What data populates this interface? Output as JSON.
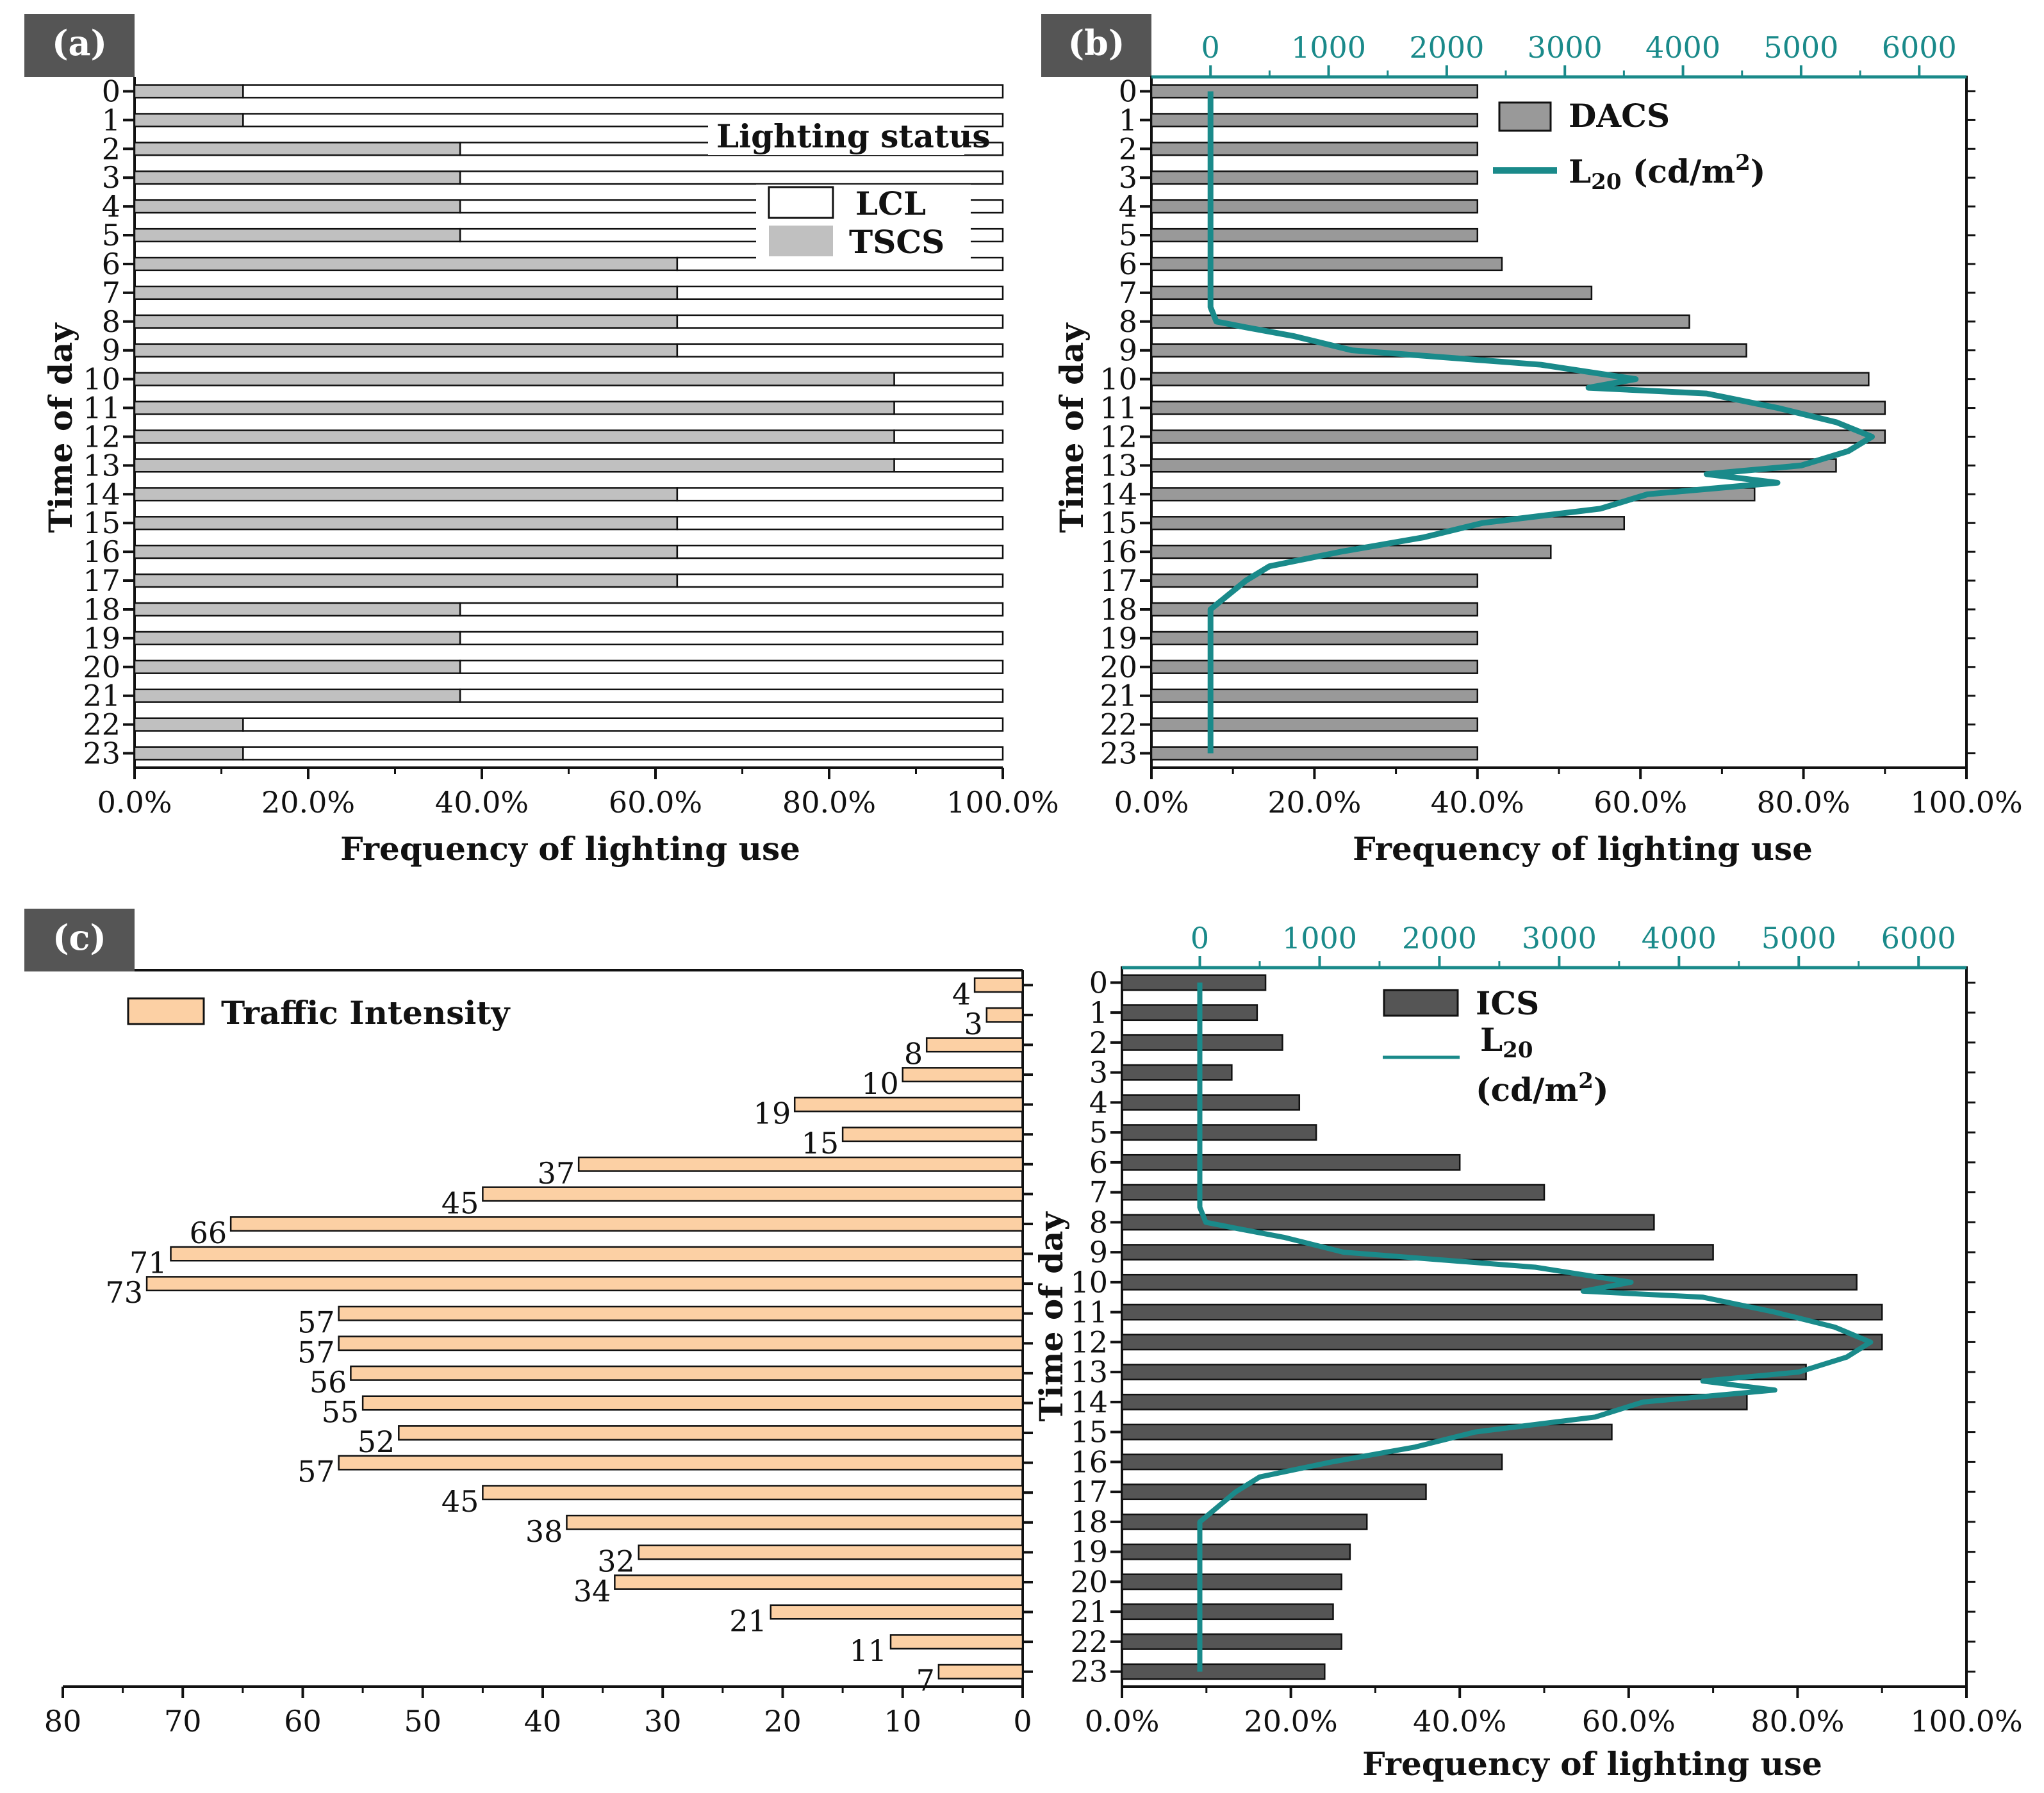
{
  "panels": {
    "a": {
      "label": "(a)"
    },
    "b": {
      "label": "(b)"
    },
    "c": {
      "label": "(c)"
    }
  },
  "colors": {
    "tscs": "#c0c0c0",
    "dacs": "#999999",
    "ics": "#555555",
    "traffic": "#fcd0a4",
    "luminance": "#1a8a8a",
    "panel_label_bg": "#555555"
  },
  "chart_data": [
    {
      "id": "a",
      "type": "bar",
      "orientation": "horizontal",
      "stacked": true,
      "ylabel": "Time of day",
      "xlabel": "Frequency of lighting use",
      "categories": [
        "0",
        "1",
        "2",
        "3",
        "4",
        "5",
        "6",
        "7",
        "8",
        "9",
        "10",
        "11",
        "12",
        "13",
        "14",
        "15",
        "16",
        "17",
        "18",
        "19",
        "20",
        "21",
        "22",
        "23"
      ],
      "x_ticks": [
        "0.0%",
        "20.0%",
        "40.0%",
        "60.0%",
        "80.0%",
        "100.0%"
      ],
      "xlim": [
        0,
        100
      ],
      "legend_title": "Lighting status",
      "series": [
        {
          "name": "TSCS",
          "values": [
            12.5,
            12.5,
            37.5,
            37.5,
            37.5,
            37.5,
            62.5,
            62.5,
            62.5,
            62.5,
            87.5,
            87.5,
            87.5,
            87.5,
            62.5,
            62.5,
            62.5,
            62.5,
            37.5,
            37.5,
            37.5,
            37.5,
            12.5,
            12.5
          ]
        },
        {
          "name": "LCL",
          "values": [
            87.5,
            87.5,
            62.5,
            62.5,
            62.5,
            62.5,
            37.5,
            37.5,
            37.5,
            37.5,
            12.5,
            12.5,
            12.5,
            12.5,
            37.5,
            37.5,
            37.5,
            37.5,
            62.5,
            62.5,
            62.5,
            62.5,
            87.5,
            87.5
          ]
        }
      ]
    },
    {
      "id": "b",
      "type": "bar",
      "orientation": "horizontal",
      "ylabel": "Time of day",
      "xlabel": "Frequency of lighting use",
      "categories": [
        "0",
        "1",
        "2",
        "3",
        "4",
        "5",
        "6",
        "7",
        "8",
        "9",
        "10",
        "11",
        "12",
        "13",
        "14",
        "15",
        "16",
        "17",
        "18",
        "19",
        "20",
        "21",
        "22",
        "23"
      ],
      "x_ticks": [
        "0.0%",
        "20.0%",
        "40.0%",
        "60.0%",
        "80.0%",
        "100.0%"
      ],
      "xlim": [
        0,
        100
      ],
      "top_ticks": [
        "0",
        "1000",
        "2000",
        "3000",
        "4000",
        "5000",
        "6000"
      ],
      "top_xlim": [
        -500,
        6400
      ],
      "series": [
        {
          "name": "DACS",
          "values": [
            40,
            40,
            40,
            40,
            40,
            40,
            43,
            54,
            66,
            73,
            88,
            90,
            90,
            84,
            74,
            58,
            49,
            40,
            40,
            40,
            40,
            40,
            40,
            40
          ]
        }
      ],
      "line": {
        "name": "L20 (cd/m2)",
        "label_main": "L",
        "label_sub": "20",
        "label_unit": " (cd/m",
        "label_sup": "2",
        "label_close": ")",
        "hours": [
          0,
          1,
          2,
          3,
          4,
          5,
          6,
          7,
          7.5,
          8,
          8.2,
          8.5,
          9,
          9.5,
          10,
          10.3,
          10.5,
          11,
          11.5,
          12,
          12.5,
          13,
          13.3,
          13.6,
          14,
          14.5,
          15,
          15.5,
          16,
          16.5,
          17,
          17.5,
          18,
          19,
          20,
          21,
          22,
          23
        ],
        "values": [
          0,
          0,
          0,
          0,
          0,
          0,
          0,
          0,
          0,
          50,
          300,
          700,
          1200,
          2800,
          3600,
          3200,
          4200,
          4800,
          5300,
          5600,
          5400,
          5000,
          4200,
          4800,
          3700,
          3300,
          2300,
          1800,
          1100,
          500,
          300,
          150,
          0,
          0,
          0,
          0,
          0,
          0
        ]
      }
    },
    {
      "id": "c-left",
      "type": "bar",
      "orientation": "horizontal",
      "reversed_x": true,
      "categories": [
        "0",
        "1",
        "2",
        "3",
        "4",
        "5",
        "6",
        "7",
        "8",
        "9",
        "10",
        "11",
        "12",
        "13",
        "14",
        "15",
        "16",
        "17",
        "18",
        "19",
        "20",
        "21",
        "22",
        "23"
      ],
      "x_ticks": [
        "80",
        "70",
        "60",
        "50",
        "40",
        "30",
        "20",
        "10",
        "0"
      ],
      "xlim": [
        80,
        0
      ],
      "series": [
        {
          "name": "Traffic Intensity",
          "values": [
            4,
            3,
            8,
            10,
            19,
            15,
            37,
            45,
            66,
            71,
            73,
            57,
            57,
            56,
            55,
            52,
            57,
            45,
            38,
            32,
            34,
            21,
            11,
            7
          ]
        }
      ]
    },
    {
      "id": "c-right",
      "type": "bar",
      "orientation": "horizontal",
      "ylabel": "Time of day",
      "xlabel": "Frequency of lighting use",
      "categories": [
        "0",
        "1",
        "2",
        "3",
        "4",
        "5",
        "6",
        "7",
        "8",
        "9",
        "10",
        "11",
        "12",
        "13",
        "14",
        "15",
        "16",
        "17",
        "18",
        "19",
        "20",
        "21",
        "22",
        "23"
      ],
      "x_ticks": [
        "0.0%",
        "20.0%",
        "40.0%",
        "60.0%",
        "80.0%",
        "100.0%"
      ],
      "xlim": [
        0,
        100
      ],
      "top_ticks": [
        "0",
        "1000",
        "2000",
        "3000",
        "4000",
        "5000",
        "6000"
      ],
      "top_xlim": [
        -650,
        6400
      ],
      "series": [
        {
          "name": "ICS",
          "values": [
            17,
            16,
            19,
            13,
            21,
            23,
            40,
            50,
            63,
            70,
            87,
            90,
            90,
            81,
            74,
            58,
            45,
            36,
            29,
            27,
            26,
            25,
            26,
            24
          ]
        }
      ],
      "line": {
        "name": "L20 (cd/m2)",
        "label_main": "L",
        "label_sub": "20",
        "label_unit": "(cd/m",
        "label_sup": "2",
        "label_close": ")",
        "hours": [
          0,
          1,
          2,
          3,
          4,
          5,
          6,
          7,
          7.5,
          8,
          8.2,
          8.5,
          9,
          9.5,
          10,
          10.3,
          10.5,
          11,
          11.5,
          12,
          12.5,
          13,
          13.3,
          13.6,
          14,
          14.5,
          15,
          15.5,
          16,
          16.5,
          17,
          17.5,
          18,
          19,
          20,
          21,
          22,
          23
        ],
        "values": [
          0,
          0,
          0,
          0,
          0,
          0,
          0,
          0,
          0,
          50,
          300,
          700,
          1200,
          2800,
          3600,
          3200,
          4200,
          4800,
          5300,
          5600,
          5400,
          5000,
          4200,
          4800,
          3700,
          3300,
          2300,
          1800,
          1100,
          500,
          300,
          150,
          0,
          0,
          0,
          0,
          0,
          0
        ]
      }
    }
  ]
}
